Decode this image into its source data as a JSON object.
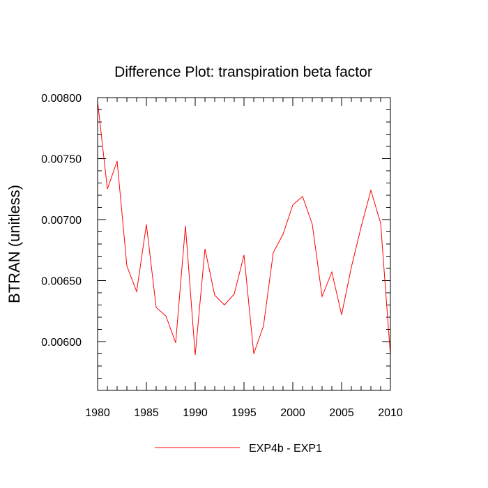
{
  "chart_data": {
    "type": "line",
    "title": "Difference Plot: transpiration beta factor",
    "xlabel": "",
    "ylabel": "BTRAN  (unitless)",
    "xlim": [
      1980,
      2010
    ],
    "ylim": [
      0.0056,
      0.008
    ],
    "x_ticks": [
      1980,
      1985,
      1990,
      1995,
      2000,
      2005,
      2010
    ],
    "y_ticks": [
      "0.00600",
      "0.00650",
      "0.00700",
      "0.00750",
      "0.00800"
    ],
    "grid": false,
    "legend_position": "bottom-center",
    "series": [
      {
        "name": "EXP4b - EXP1",
        "color": "#ff0000",
        "x": [
          1980,
          1981,
          1982,
          1983,
          1984,
          1985,
          1986,
          1987,
          1988,
          1989,
          1990,
          1991,
          1992,
          1993,
          1994,
          1995,
          1996,
          1997,
          1998,
          1999,
          2000,
          2001,
          2002,
          2003,
          2004,
          2005,
          2006,
          2007,
          2008,
          2009,
          2010
        ],
        "y": [
          0.00797,
          0.00725,
          0.00748,
          0.00662,
          0.00641,
          0.00696,
          0.00628,
          0.00621,
          0.00599,
          0.00695,
          0.00589,
          0.00676,
          0.00638,
          0.0063,
          0.00639,
          0.00671,
          0.0059,
          0.00613,
          0.00673,
          0.00688,
          0.00712,
          0.00719,
          0.00696,
          0.00637,
          0.00657,
          0.00622,
          0.00661,
          0.00694,
          0.00724,
          0.00697,
          0.00589
        ]
      }
    ]
  }
}
